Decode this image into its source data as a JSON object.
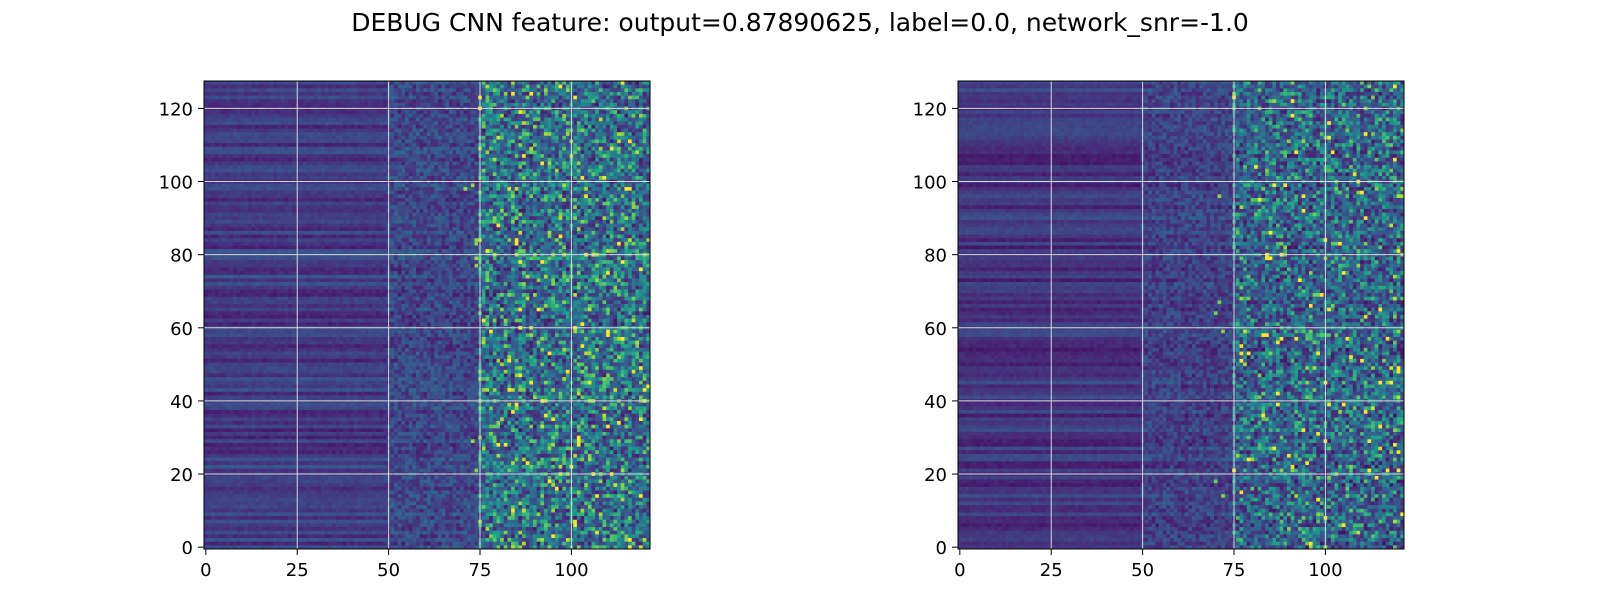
{
  "title": "DEBUG CNN feature: output=0.87890625, label=0.0, network_snr=-1.0",
  "chart_data": [
    {
      "type": "heatmap",
      "title": "",
      "xlabel": "",
      "ylabel": "",
      "rows": 128,
      "cols": 122,
      "xlim": [
        -0.5,
        121.5
      ],
      "ylim": [
        127.5,
        -0.5
      ],
      "grid": true,
      "colormap": "viridis",
      "xticks": [
        0,
        25,
        50,
        75,
        100
      ],
      "yticks": [
        0,
        20,
        40,
        60,
        80,
        100,
        120
      ],
      "column_bands": [
        {
          "x": [
            0,
            49
          ],
          "mean_intensity": 0.18,
          "noise": 0.06
        },
        {
          "x": [
            50,
            74
          ],
          "mean_intensity": 0.22,
          "noise": 0.22
        },
        {
          "x": [
            75,
            121
          ],
          "mean_intensity": 0.32,
          "noise": 0.45
        }
      ]
    },
    {
      "type": "heatmap",
      "title": "",
      "xlabel": "",
      "ylabel": "",
      "rows": 128,
      "cols": 122,
      "xlim": [
        -0.5,
        121.5
      ],
      "ylim": [
        127.5,
        -0.5
      ],
      "grid": true,
      "colormap": "viridis",
      "xticks": [
        0,
        25,
        50,
        75,
        100
      ],
      "yticks": [
        0,
        20,
        40,
        60,
        80,
        100,
        120
      ],
      "column_bands": [
        {
          "x": [
            0,
            49
          ],
          "mean_intensity": 0.16,
          "noise": 0.05
        },
        {
          "x": [
            50,
            74
          ],
          "mean_intensity": 0.2,
          "noise": 0.2
        },
        {
          "x": [
            75,
            121
          ],
          "mean_intensity": 0.28,
          "noise": 0.4
        }
      ]
    }
  ]
}
